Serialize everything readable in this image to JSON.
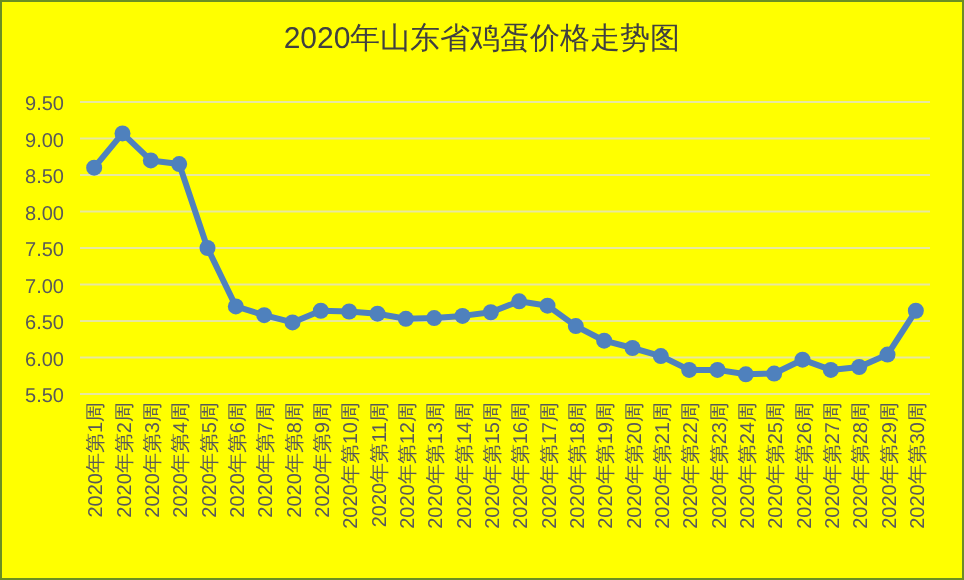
{
  "chart_data": {
    "type": "line",
    "title": "2020年山东省鸡蛋价格走势图",
    "categories": [
      "2020年第1周",
      "2020年第2周",
      "2020年第3周",
      "2020年第4周",
      "2020年第5周",
      "2020年第6周",
      "2020年第7周",
      "2020年第8周",
      "2020年第9周",
      "2020年第10周",
      "2020年第11周",
      "2020年第12周",
      "2020年第13周",
      "2020年第14周",
      "2020年第15周",
      "2020年第16周",
      "2020年第17周",
      "2020年第18周",
      "2020年第19周",
      "2020年第20周",
      "2020年第21周",
      "2020年第22周",
      "2020年第23周",
      "2020年第24周",
      "2020年第25周",
      "2020年第26周",
      "2020年第27周",
      "2020年第28周",
      "2020年第29周",
      "2020年第30周"
    ],
    "series": [
      {
        "color": "#4f81bd",
        "values": [
          8.6,
          9.07,
          8.7,
          8.65,
          7.5,
          6.7,
          6.58,
          6.48,
          6.64,
          6.63,
          6.6,
          6.53,
          6.54,
          6.57,
          6.62,
          6.77,
          6.71,
          6.43,
          6.23,
          6.13,
          6.02,
          5.83,
          5.83,
          5.77,
          5.78,
          5.97,
          5.83,
          5.87,
          6.04,
          6.64
        ]
      }
    ],
    "ylim": [
      5.5,
      9.5
    ],
    "yticks": [
      {
        "value": 5.5,
        "label": "5.50"
      },
      {
        "value": 6,
        "label": "6.00"
      },
      {
        "value": 6.5,
        "label": "6.50"
      },
      {
        "value": 7,
        "label": "7.00"
      },
      {
        "value": 7.5,
        "label": "7.50"
      },
      {
        "value": 8,
        "label": "8.00"
      },
      {
        "value": 8.5,
        "label": "8.50"
      },
      {
        "value": 9,
        "label": "9.00"
      },
      {
        "value": 9.5,
        "label": "9.50"
      }
    ],
    "grid": "y",
    "marker": "circle",
    "line_style": "solid"
  }
}
